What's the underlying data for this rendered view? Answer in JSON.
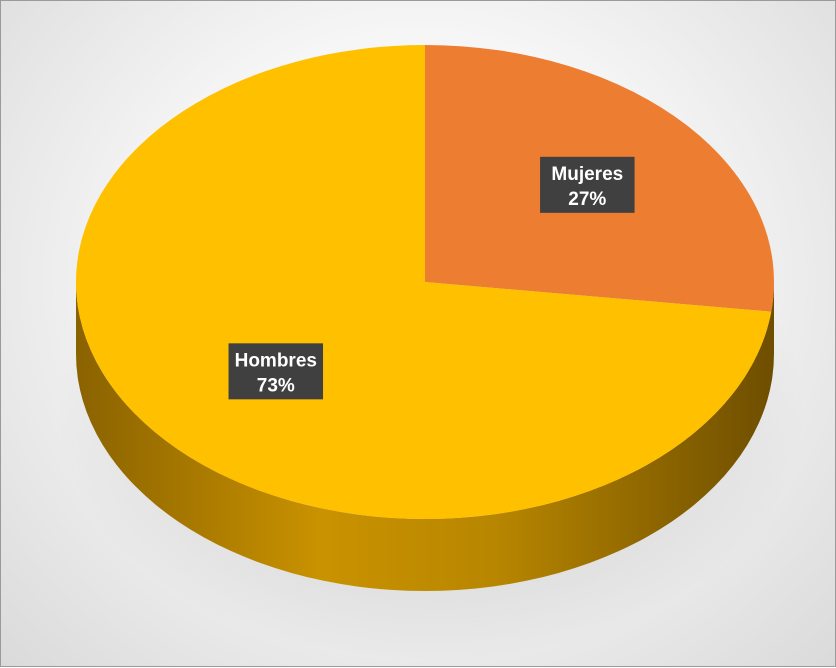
{
  "chart_data": {
    "type": "pie",
    "title": "",
    "categories": [
      "Mujeres",
      "Hombres"
    ],
    "values": [
      27,
      73
    ],
    "labels": [
      {
        "name": "Mujeres",
        "percent": "27%"
      },
      {
        "name": "Hombres",
        "percent": "73%"
      }
    ],
    "colors": {
      "Mujeres": "#ED7D31",
      "Hombres": "#FFC000"
    },
    "style": "3d",
    "legend": "none",
    "data_labels": "inside"
  }
}
